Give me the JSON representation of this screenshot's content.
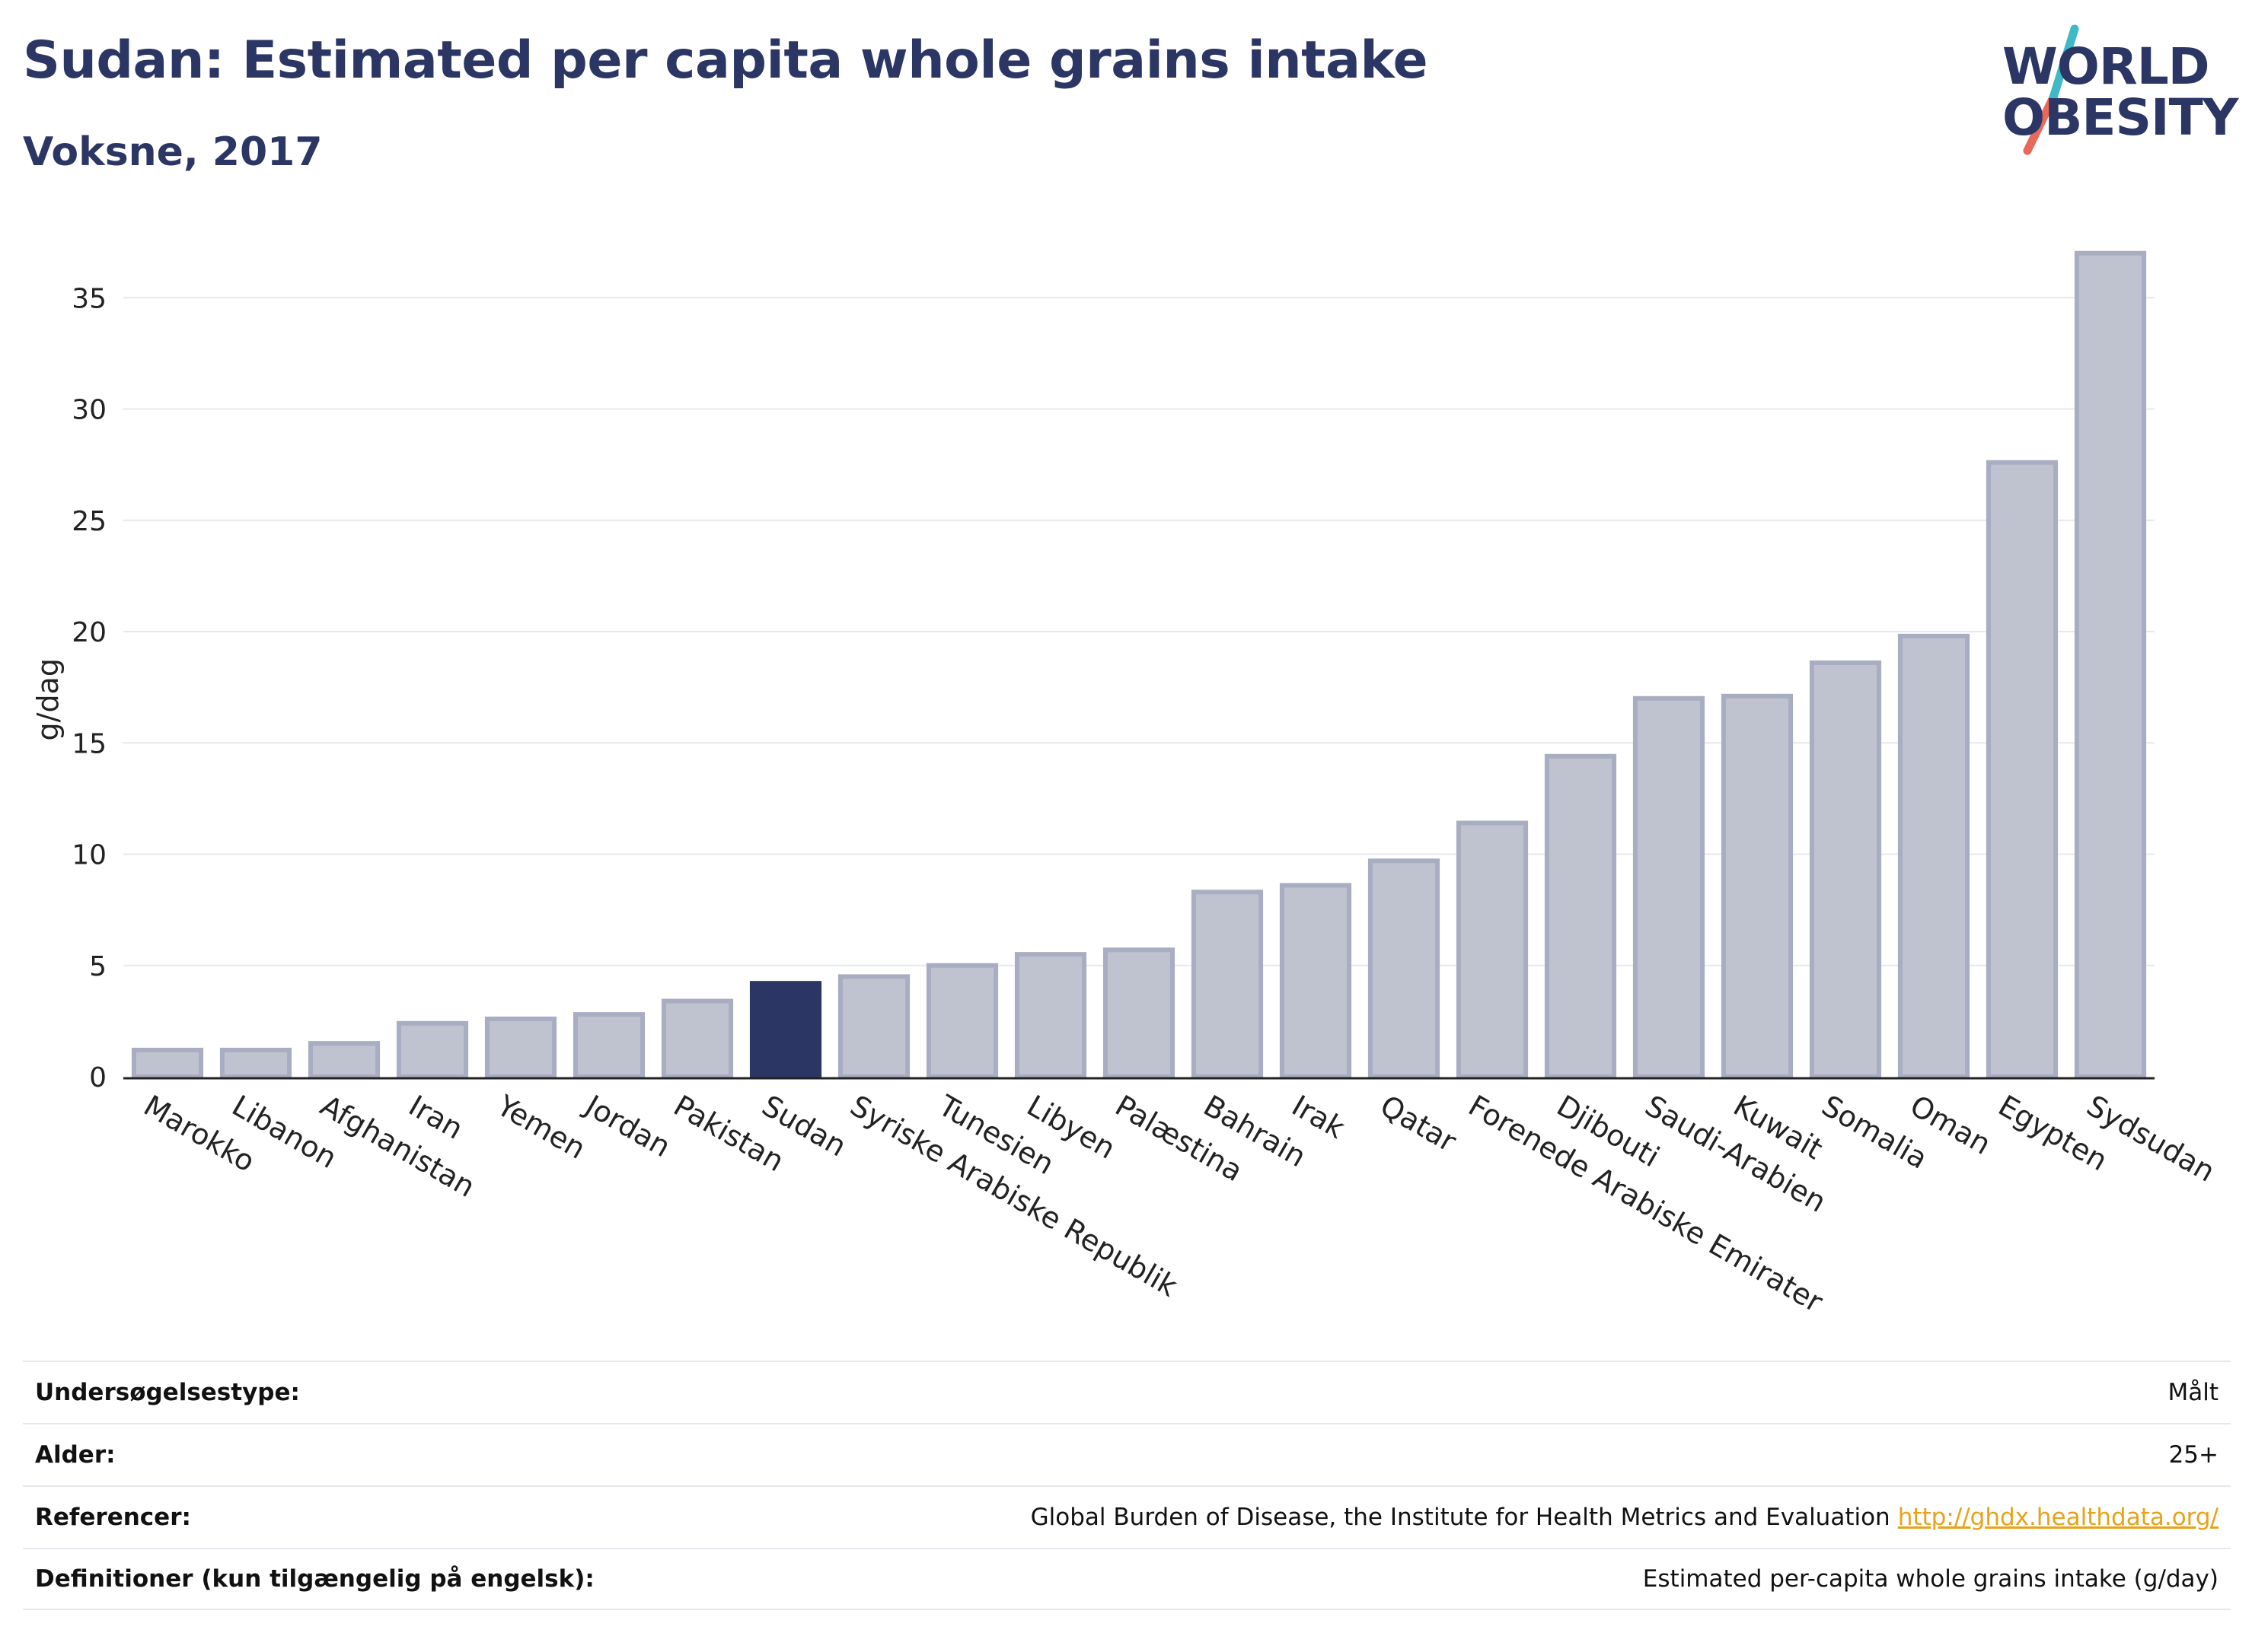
{
  "header": {
    "title": "Sudan: Estimated per capita whole grains intake",
    "subtitle": "Voksne, 2017"
  },
  "logo": {
    "line1": "WORLD",
    "line2": "OBESITY",
    "slash_color_top": "#3fb9c4",
    "slash_color_bottom": "#e8685a"
  },
  "colors": {
    "highlight": "#2b3664",
    "bar_fill": "#bfc2cf",
    "bar_stroke": "#a8adc2",
    "grid": "#e6e8ee"
  },
  "chart_data": {
    "type": "bar",
    "title": "",
    "xlabel": "",
    "ylabel": "g/dag",
    "ylim": [
      0,
      38
    ],
    "yticks": [
      0,
      5,
      10,
      15,
      20,
      25,
      30,
      35
    ],
    "grid": true,
    "highlight": "Sudan",
    "categories": [
      "Marokko",
      "Libanon",
      "Afghanistan",
      "Iran",
      "Yemen",
      "Jordan",
      "Pakistan",
      "Sudan",
      "Syriske Arabiske Republik",
      "Tunesien",
      "Libyen",
      "Palæstina",
      "Bahrain",
      "Irak",
      "Qatar",
      "Forenede Arabiske Emirater",
      "Djibouti",
      "Saudi-Arabien",
      "Kuwait",
      "Somalia",
      "Oman",
      "Egypten",
      "Sydsudan"
    ],
    "values": [
      1.2,
      1.2,
      1.5,
      2.4,
      2.6,
      2.8,
      3.4,
      4.2,
      4.5,
      5.0,
      5.5,
      5.7,
      8.3,
      8.6,
      9.7,
      11.4,
      14.4,
      17.0,
      17.1,
      18.6,
      19.8,
      27.6,
      37.0
    ]
  },
  "info": {
    "rows": [
      {
        "label": "Undersøgelsestype:",
        "value": "Målt",
        "link": ""
      },
      {
        "label": "Alder:",
        "value": "25+",
        "link": ""
      },
      {
        "label": "Referencer:",
        "value": "Global Burden of Disease, the Institute for Health Metrics and Evaluation",
        "link": "http://ghdx.healthdata.org/"
      },
      {
        "label": "Definitioner (kun tilgængelig på engelsk):",
        "value": "Estimated per-capita whole grains intake (g/day)",
        "link": ""
      }
    ]
  }
}
